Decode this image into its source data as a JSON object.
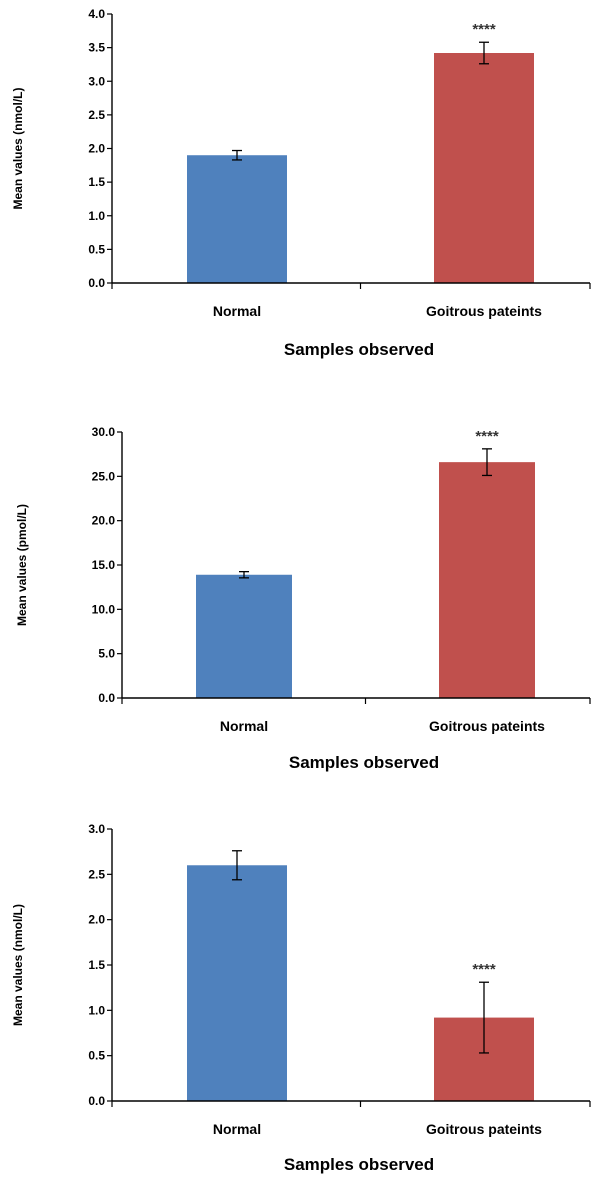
{
  "chart_data": [
    {
      "type": "bar",
      "categories": [
        "Normal",
        "Goitrous pateints"
      ],
      "values": [
        1.9,
        3.42
      ],
      "errors": [
        0.07,
        0.16
      ],
      "significance": [
        "",
        "****"
      ],
      "colors": [
        "#4f81bd",
        "#c0504d"
      ],
      "ylabel": "Mean values (nmol/L)",
      "xlabel": "Samples observed",
      "ylim": [
        0,
        4.0
      ],
      "yticks": [
        "0.0",
        "0.5",
        "1.0",
        "1.5",
        "2.0",
        "2.5",
        "3.0",
        "3.5",
        "4.0"
      ],
      "grid": false,
      "legend": "none"
    },
    {
      "type": "bar",
      "categories": [
        "Normal",
        "Goitrous pateints"
      ],
      "values": [
        13.9,
        26.6
      ],
      "errors": [
        0.35,
        1.5
      ],
      "significance": [
        "",
        "****"
      ],
      "colors": [
        "#4f81bd",
        "#c0504d"
      ],
      "ylabel": "Mean values (pmol/L)",
      "xlabel": "Samples observed",
      "ylim": [
        0,
        30.0
      ],
      "yticks": [
        "0.0",
        "5.0",
        "10.0",
        "15.0",
        "20.0",
        "25.0",
        "30.0"
      ],
      "grid": false,
      "legend": "none"
    },
    {
      "type": "bar",
      "categories": [
        "Normal",
        "Goitrous pateints"
      ],
      "values": [
        2.6,
        0.92
      ],
      "errors": [
        0.16,
        0.39
      ],
      "significance": [
        "",
        "****"
      ],
      "colors": [
        "#4f81bd",
        "#c0504d"
      ],
      "ylabel": "Mean values (nmol/L)",
      "xlabel": "Samples observed",
      "ylim": [
        0,
        3.0
      ],
      "yticks": [
        "0.0",
        "0.5",
        "1.0",
        "1.5",
        "2.0",
        "2.5",
        "3.0"
      ],
      "grid": false,
      "legend": "none"
    }
  ]
}
